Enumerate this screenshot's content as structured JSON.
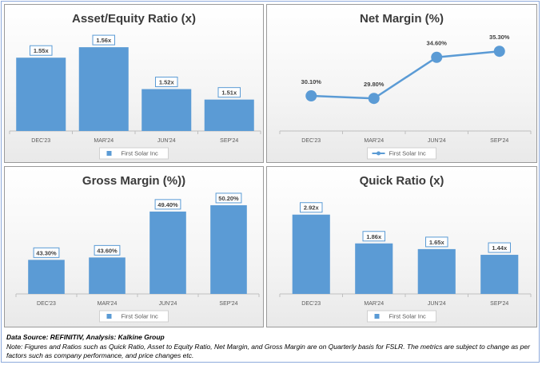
{
  "footer": {
    "source": "Data Source: REFINITIV, Analysis: Kalkine Group",
    "note": "Note: Figures and Ratios such as Quick Ratio, Asset to Equity Ratio, Net Margin, and Gross Margin are on Quarterly basis for FSLR. The metrics are subject to change as per factors such as company performance, and price changes etc."
  },
  "colors": {
    "series": "#5b9bd5",
    "axis": "#bfbfbf",
    "label_border": "#5b9bd5"
  },
  "chart_data": [
    {
      "id": "asset-equity",
      "type": "bar",
      "title": "Asset/Equity Ratio (x)",
      "categories": [
        "DEC'23",
        "MAR'24",
        "JUN'24",
        "SEP'24"
      ],
      "series": [
        {
          "name": "First Solar Inc",
          "values": [
            1.55,
            1.56,
            1.52,
            1.51
          ]
        }
      ],
      "data_labels": [
        "1.55x",
        "1.56x",
        "1.52x",
        "1.51x"
      ],
      "ylim": [
        1.48,
        1.57
      ],
      "grid": false,
      "legend": "bottom"
    },
    {
      "id": "net-margin",
      "type": "line",
      "title": "Net Margin (%)",
      "categories": [
        "DEC'23",
        "MAR'24",
        "JUN'24",
        "SEP'24"
      ],
      "series": [
        {
          "name": "First Solar Inc",
          "values": [
            30.1,
            29.8,
            34.6,
            35.3
          ]
        }
      ],
      "data_labels": [
        "30.10%",
        "29.80%",
        "34.60%",
        "35.30%"
      ],
      "ylim": [
        26,
        37
      ],
      "grid": false,
      "legend": "bottom"
    },
    {
      "id": "gross-margin",
      "type": "bar",
      "title": "Gross Margin (%))",
      "categories": [
        "DEC'23",
        "MAR'24",
        "JUN'24",
        "SEP'24"
      ],
      "series": [
        {
          "name": "First Solar Inc",
          "values": [
            43.3,
            43.6,
            49.4,
            50.2
          ]
        }
      ],
      "data_labels": [
        "43.30%",
        "43.60%",
        "49.40%",
        "50.20%"
      ],
      "ylim": [
        39,
        51
      ],
      "grid": false,
      "legend": "bottom"
    },
    {
      "id": "quick-ratio",
      "type": "bar",
      "title": "Quick Ratio (x)",
      "categories": [
        "DEC'23",
        "MAR'24",
        "JUN'24",
        "SEP'24"
      ],
      "series": [
        {
          "name": "First Solar Inc",
          "values": [
            2.92,
            1.86,
            1.65,
            1.44
          ]
        }
      ],
      "data_labels": [
        "2.92x",
        "1.86x",
        "1.65x",
        "1.44x"
      ],
      "ylim": [
        0,
        3.5
      ],
      "grid": false,
      "legend": "bottom"
    }
  ]
}
